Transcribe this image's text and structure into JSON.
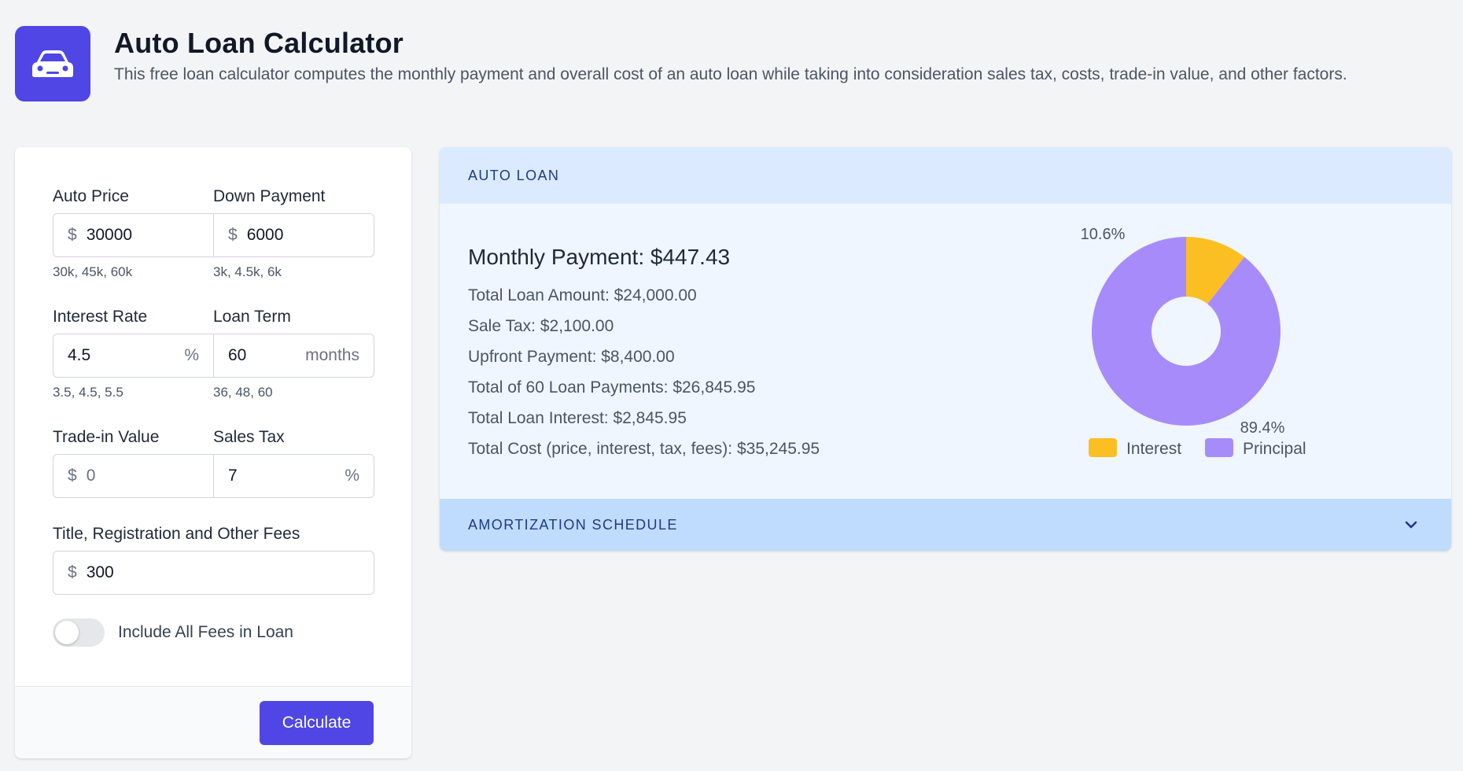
{
  "header": {
    "title": "Auto Loan Calculator",
    "description": "This free loan calculator computes the monthly payment and overall cost of an auto loan while taking into consideration sales tax, costs, trade-in value, and other factors.",
    "icon": "car-icon"
  },
  "form": {
    "auto_price": {
      "label": "Auto Price",
      "prefix": "$",
      "value": "30000",
      "hint": "30k, 45k, 60k"
    },
    "down_payment": {
      "label": "Down Payment",
      "prefix": "$",
      "value": "6000",
      "hint": "3k, 4.5k, 6k"
    },
    "interest_rate": {
      "label": "Interest Rate",
      "suffix": "%",
      "value": "4.5",
      "hint": "3.5, 4.5, 5.5"
    },
    "loan_term": {
      "label": "Loan Term",
      "suffix": "months",
      "value": "60",
      "hint": "36, 48, 60"
    },
    "trade_in": {
      "label": "Trade-in Value",
      "prefix": "$",
      "placeholder": "0"
    },
    "sales_tax": {
      "label": "Sales Tax",
      "suffix": "%",
      "value": "7"
    },
    "fees": {
      "label": "Title, Registration and Other Fees",
      "prefix": "$",
      "value": "300"
    },
    "include_fees": {
      "label": "Include All Fees in Loan",
      "checked": false
    },
    "calculate_label": "Calculate"
  },
  "results": {
    "section_title": "AUTO LOAN",
    "monthly_payment": "Monthly Payment: $447.43",
    "stats": [
      "Total Loan Amount: $24,000.00",
      "Sale Tax: $2,100.00",
      "Upfront Payment: $8,400.00",
      "Total of 60 Loan Payments: $26,845.95",
      "Total Loan Interest: $2,845.95",
      "Total Cost (price, interest, tax, fees): $35,245.95"
    ],
    "amortization_title": "AMORTIZATION SCHEDULE"
  },
  "chart_data": {
    "type": "pie",
    "donut": true,
    "slices": [
      {
        "label": "Interest",
        "value": 10.6,
        "value_label": "10.6%",
        "color": "#fbbf24"
      },
      {
        "label": "Principal",
        "value": 89.4,
        "value_label": "89.4%",
        "color": "#a78bfa"
      }
    ],
    "legend_position": "bottom"
  },
  "colors": {
    "accent": "#4f46e5",
    "header_bg": "#dbeafe",
    "amort_bg": "#bfdbfe"
  }
}
